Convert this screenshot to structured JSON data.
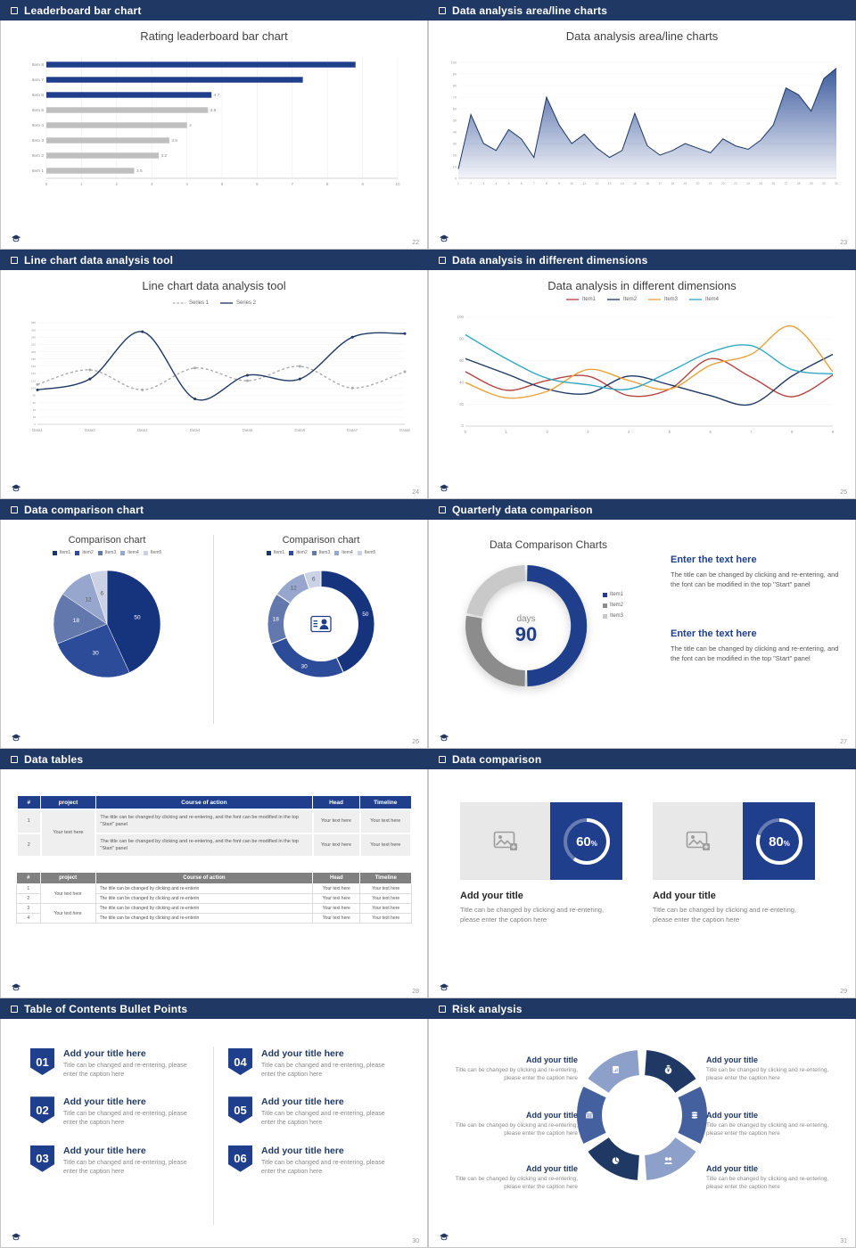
{
  "slides": [
    {
      "header": "Leaderboard bar chart",
      "page": "22",
      "title": "Rating leaderboard bar chart",
      "chart": {
        "type": "barH",
        "categories": [
          "Item 8",
          "Item 7",
          "Item 6",
          "Item 5",
          "Item 4",
          "Item 3",
          "Item 2",
          "Item 1"
        ],
        "values": [
          8.8,
          7.3,
          4.7,
          4.6,
          4,
          3.5,
          3.2,
          2.5
        ],
        "value_labels": [
          "",
          "",
          "4.7",
          "4.6",
          "4",
          "3.5",
          "3.2",
          "2.5"
        ],
        "xlim": [
          0,
          10
        ],
        "xticks": [
          0,
          1,
          2,
          3,
          4,
          5,
          6,
          7,
          8,
          9,
          10
        ],
        "bar_colors": [
          "#1F3E8C",
          "#1F3E8C",
          "#1F3E8C",
          "#BFBFBF",
          "#BFBFBF",
          "#BFBFBF",
          "#BFBFBF",
          "#BFBFBF"
        ]
      }
    },
    {
      "header": "Data analysis area/line charts",
      "page": "23",
      "title": "Data analysis area/line charts",
      "chart": {
        "type": "area",
        "x": [
          1,
          2,
          3,
          4,
          5,
          6,
          7,
          8,
          9,
          10,
          11,
          12,
          13,
          14,
          15,
          16,
          17,
          18,
          19,
          20,
          21,
          22,
          23,
          24,
          25,
          26,
          27,
          28,
          29,
          30,
          31
        ],
        "values": [
          8,
          55,
          30,
          24,
          42,
          34,
          18,
          70,
          46,
          30,
          38,
          26,
          18,
          24,
          56,
          28,
          20,
          24,
          30,
          26,
          22,
          34,
          28,
          25,
          33,
          46,
          78,
          72,
          58,
          86,
          95
        ],
        "ylim": [
          0,
          100
        ],
        "yticks": [
          0,
          10,
          20,
          30,
          40,
          50,
          60,
          70,
          80,
          90,
          100
        ],
        "line_color": "#1F3864",
        "fill_color": "#35549B"
      }
    },
    {
      "header": "Line chart data analysis tool",
      "page": "24",
      "title": "Line chart data analysis tool",
      "legend": {
        "marker": "line",
        "items": [
          {
            "label": "Series 1",
            "color": "#ABABAB",
            "dashed": true
          },
          {
            "label": "Series 2",
            "color": "#1F3864",
            "dashed": false
          }
        ]
      },
      "chart": {
        "type": "lines",
        "x_labels": [
          "Data1",
          "Data2",
          "Data3",
          "Data4",
          "Data5",
          "Data6",
          "Data7",
          "Data8"
        ],
        "ylim": [
          0,
          280
        ],
        "ytick_step": 20,
        "series": [
          {
            "name": "Series 1",
            "color": "#ABABAB",
            "dashed": true,
            "dots": true,
            "values": [
              110,
              150,
              95,
              155,
              120,
              160,
              100,
              145
            ]
          },
          {
            "name": "Series 2",
            "color": "#1F3864",
            "dashed": false,
            "dots": true,
            "values": [
              95,
              125,
              255,
              70,
              135,
              125,
              240,
              250
            ]
          }
        ]
      }
    },
    {
      "header": "Data analysis in different dimensions",
      "page": "25",
      "title": "Data analysis in different dimensions",
      "legend": {
        "marker": "line",
        "items": [
          {
            "label": "Item1",
            "color": "#B5443F"
          },
          {
            "label": "Item2",
            "color": "#1F3864"
          },
          {
            "label": "Item3",
            "color": "#E8A33D"
          },
          {
            "label": "Item4",
            "color": "#31A8C4"
          }
        ]
      },
      "chart": {
        "type": "lines",
        "x_labels": [
          "0",
          "1",
          "2",
          "3",
          "4",
          "5",
          "6",
          "7",
          "8",
          "9"
        ],
        "ylim": [
          0,
          100
        ],
        "ytick_step": 20,
        "series": [
          {
            "name": "Item1",
            "color": "#B5443F",
            "values": [
              50,
              33,
              42,
              46,
              28,
              34,
              62,
              45,
              27,
              47
            ]
          },
          {
            "name": "Item2",
            "color": "#1F3864",
            "values": [
              62,
              48,
              34,
              30,
              46,
              38,
              28,
              20,
              46,
              66
            ]
          },
          {
            "name": "Item3",
            "color": "#E8A33D",
            "values": [
              40,
              26,
              32,
              52,
              42,
              34,
              56,
              66,
              92,
              50
            ]
          },
          {
            "name": "Item4",
            "color": "#31A8C4",
            "values": [
              84,
              62,
              44,
              38,
              34,
              50,
              68,
              74,
              52,
              48
            ]
          }
        ]
      }
    },
    {
      "header": "Data comparison chart",
      "page": "26",
      "panels": [
        {
          "title": "Comparison chart",
          "legend": {
            "marker": "square",
            "items": [
              {
                "label": "Item1",
                "color": "#16337E"
              },
              {
                "label": "Item2",
                "color": "#2C4C99"
              },
              {
                "label": "Item3",
                "color": "#6379AE"
              },
              {
                "label": "Item4",
                "color": "#97A6CC"
              },
              {
                "label": "Item5",
                "color": "#CBD2E6"
              }
            ]
          },
          "chart": {
            "type": "pie",
            "donut": false,
            "values": [
              50,
              30,
              18,
              12,
              6
            ],
            "labels": [
              "50",
              "30",
              "18",
              "12",
              "6"
            ],
            "colors": [
              "#16337E",
              "#2C4C99",
              "#6379AE",
              "#97A6CC",
              "#CBD2E6"
            ]
          }
        },
        {
          "title": "Comparison chart",
          "legend": {
            "marker": "square",
            "items": [
              {
                "label": "Item1",
                "color": "#16337E"
              },
              {
                "label": "Item2",
                "color": "#2C4C99"
              },
              {
                "label": "Item3",
                "color": "#6379AE"
              },
              {
                "label": "Item4",
                "color": "#97A6CC"
              },
              {
                "label": "Item5",
                "color": "#CBD2E6"
              }
            ]
          },
          "chart": {
            "type": "pie",
            "donut": true,
            "center_icon": "person",
            "values": [
              50,
              30,
              18,
              12,
              6
            ],
            "labels": [
              "50",
              "30",
              "18",
              "12",
              "6"
            ],
            "colors": [
              "#16337E",
              "#2C4C99",
              "#6379AE",
              "#97A6CC",
              "#CBD2E6"
            ]
          }
        }
      ]
    },
    {
      "header": "Quarterly data comparison",
      "page": "27",
      "title": "Data Comparison Charts",
      "donut": {
        "type": "ring",
        "values": [
          50,
          28,
          22
        ],
        "colors": [
          "#1F3E8C",
          "#8C8C8C",
          "#C9C9C9"
        ],
        "center_label": "days",
        "center_value": "90"
      },
      "legend": {
        "marker": "square",
        "items": [
          {
            "label": "Item1",
            "color": "#1F3E8C"
          },
          {
            "label": "Item2",
            "color": "#8C8C8C"
          },
          {
            "label": "Item3",
            "color": "#C9C9C9"
          }
        ]
      },
      "blocks": [
        {
          "heading": "Enter the text here",
          "body": "The title can be changed by clicking and re-entering, and the font can be modified in the top \"Start\" panel"
        },
        {
          "heading": "Enter the text here",
          "body": "The title can be changed by clicking and re-entering, and the font can be modified in the top \"Start\" panel"
        }
      ]
    },
    {
      "header": "Data tables",
      "page": "28",
      "table1": {
        "headers": [
          "#",
          "project",
          "Course of action",
          "Head",
          "Timeline"
        ],
        "project_merged": "Your text here",
        "rows": [
          {
            "num": "1",
            "course": "The title can be changed by clicking and re-entering, and the font can be modified in the top \"Start\" panel",
            "head": "Your text here",
            "timeline": "Your text here"
          },
          {
            "num": "2",
            "course": "The title can be changed by clicking and re-entering, and the font can be modified in the top \"Start\" panel",
            "head": "Your text here",
            "timeline": "Your text here"
          }
        ]
      },
      "table2": {
        "headers": [
          "#",
          "project",
          "Course of action",
          "Head",
          "Timeline"
        ],
        "project_merged_a": "Your text here",
        "project_merged_b": "Your text here",
        "rows": [
          {
            "num": "1",
            "course": "The title can be changed by clicking and re-enterin",
            "head": "Your text here",
            "timeline": "Your text here"
          },
          {
            "num": "2",
            "course": "The title can be changed by clicking and re-enterin",
            "head": "Your text here",
            "timeline": "Your text here"
          },
          {
            "num": "3",
            "course": "The title can be changed by clicking and re-enterin",
            "head": "Your text here",
            "timeline": "Your text here"
          },
          {
            "num": "4",
            "course": "The title can be changed by clicking and re-enterin",
            "head": "Your text here",
            "timeline": "Your text here"
          }
        ]
      }
    },
    {
      "header": "Data comparison",
      "page": "29",
      "cards": [
        {
          "title": "Add your title",
          "caption": "Title can be changed by clicking and re-entering, please enter the caption here",
          "ring": {
            "type": "progress",
            "percent": 60,
            "suffix": "%"
          }
        },
        {
          "title": "Add your title",
          "caption": "Title can be changed by clicking and re-entering, please enter the caption here",
          "ring": {
            "type": "progress",
            "percent": 80,
            "suffix": "%"
          }
        }
      ]
    },
    {
      "header": "Table of Contents Bullet Points",
      "page": "30",
      "items": [
        {
          "num": "01",
          "title": "Add your title here",
          "caption": "Title can be changed and re-entering, please enter the caption here"
        },
        {
          "num": "02",
          "title": "Add your title here",
          "caption": "Title can be changed and re-entering, please enter the caption here"
        },
        {
          "num": "03",
          "title": "Add your title here",
          "caption": "Title can be changed and re-entering, please enter the caption here"
        },
        {
          "num": "04",
          "title": "Add your title here",
          "caption": "Title can be changed and re-entering, please enter the caption here"
        },
        {
          "num": "05",
          "title": "Add your title here",
          "caption": "Title can be changed and re-entering, please enter the caption here"
        },
        {
          "num": "06",
          "title": "Add your title here",
          "caption": "Title can be changed and re-entering, please enter the caption here"
        }
      ]
    },
    {
      "header": "Risk analysis",
      "page": "31",
      "wheel": {
        "type": "wheel",
        "colors": [
          "#1F3864",
          "#44609F",
          "#8DA0C9",
          "#1F3864",
          "#44609F",
          "#8DA0C9"
        ],
        "icons": [
          "moneybag",
          "coins",
          "people",
          "pie",
          "bank",
          "chart"
        ]
      },
      "left_blocks": [
        {
          "title": "Add your title",
          "caption": "Title can be changed by clicking and re-entering, please enter the caption here"
        },
        {
          "title": "Add your title",
          "caption": "Title can be changed by clicking and re-entering, please enter the caption here"
        },
        {
          "title": "Add your title",
          "caption": "Title can be changed by clicking and re-entering, please enter the caption here"
        }
      ],
      "right_blocks": [
        {
          "title": "Add your title",
          "caption": "Title can be changed by clicking and re-entering, please enter the caption here"
        },
        {
          "title": "Add your title",
          "caption": "Title can be changed by clicking and re-entering, please enter the caption here"
        },
        {
          "title": "Add your title",
          "caption": "Title can be changed by clicking and re-entering, please enter the caption here"
        }
      ]
    }
  ]
}
